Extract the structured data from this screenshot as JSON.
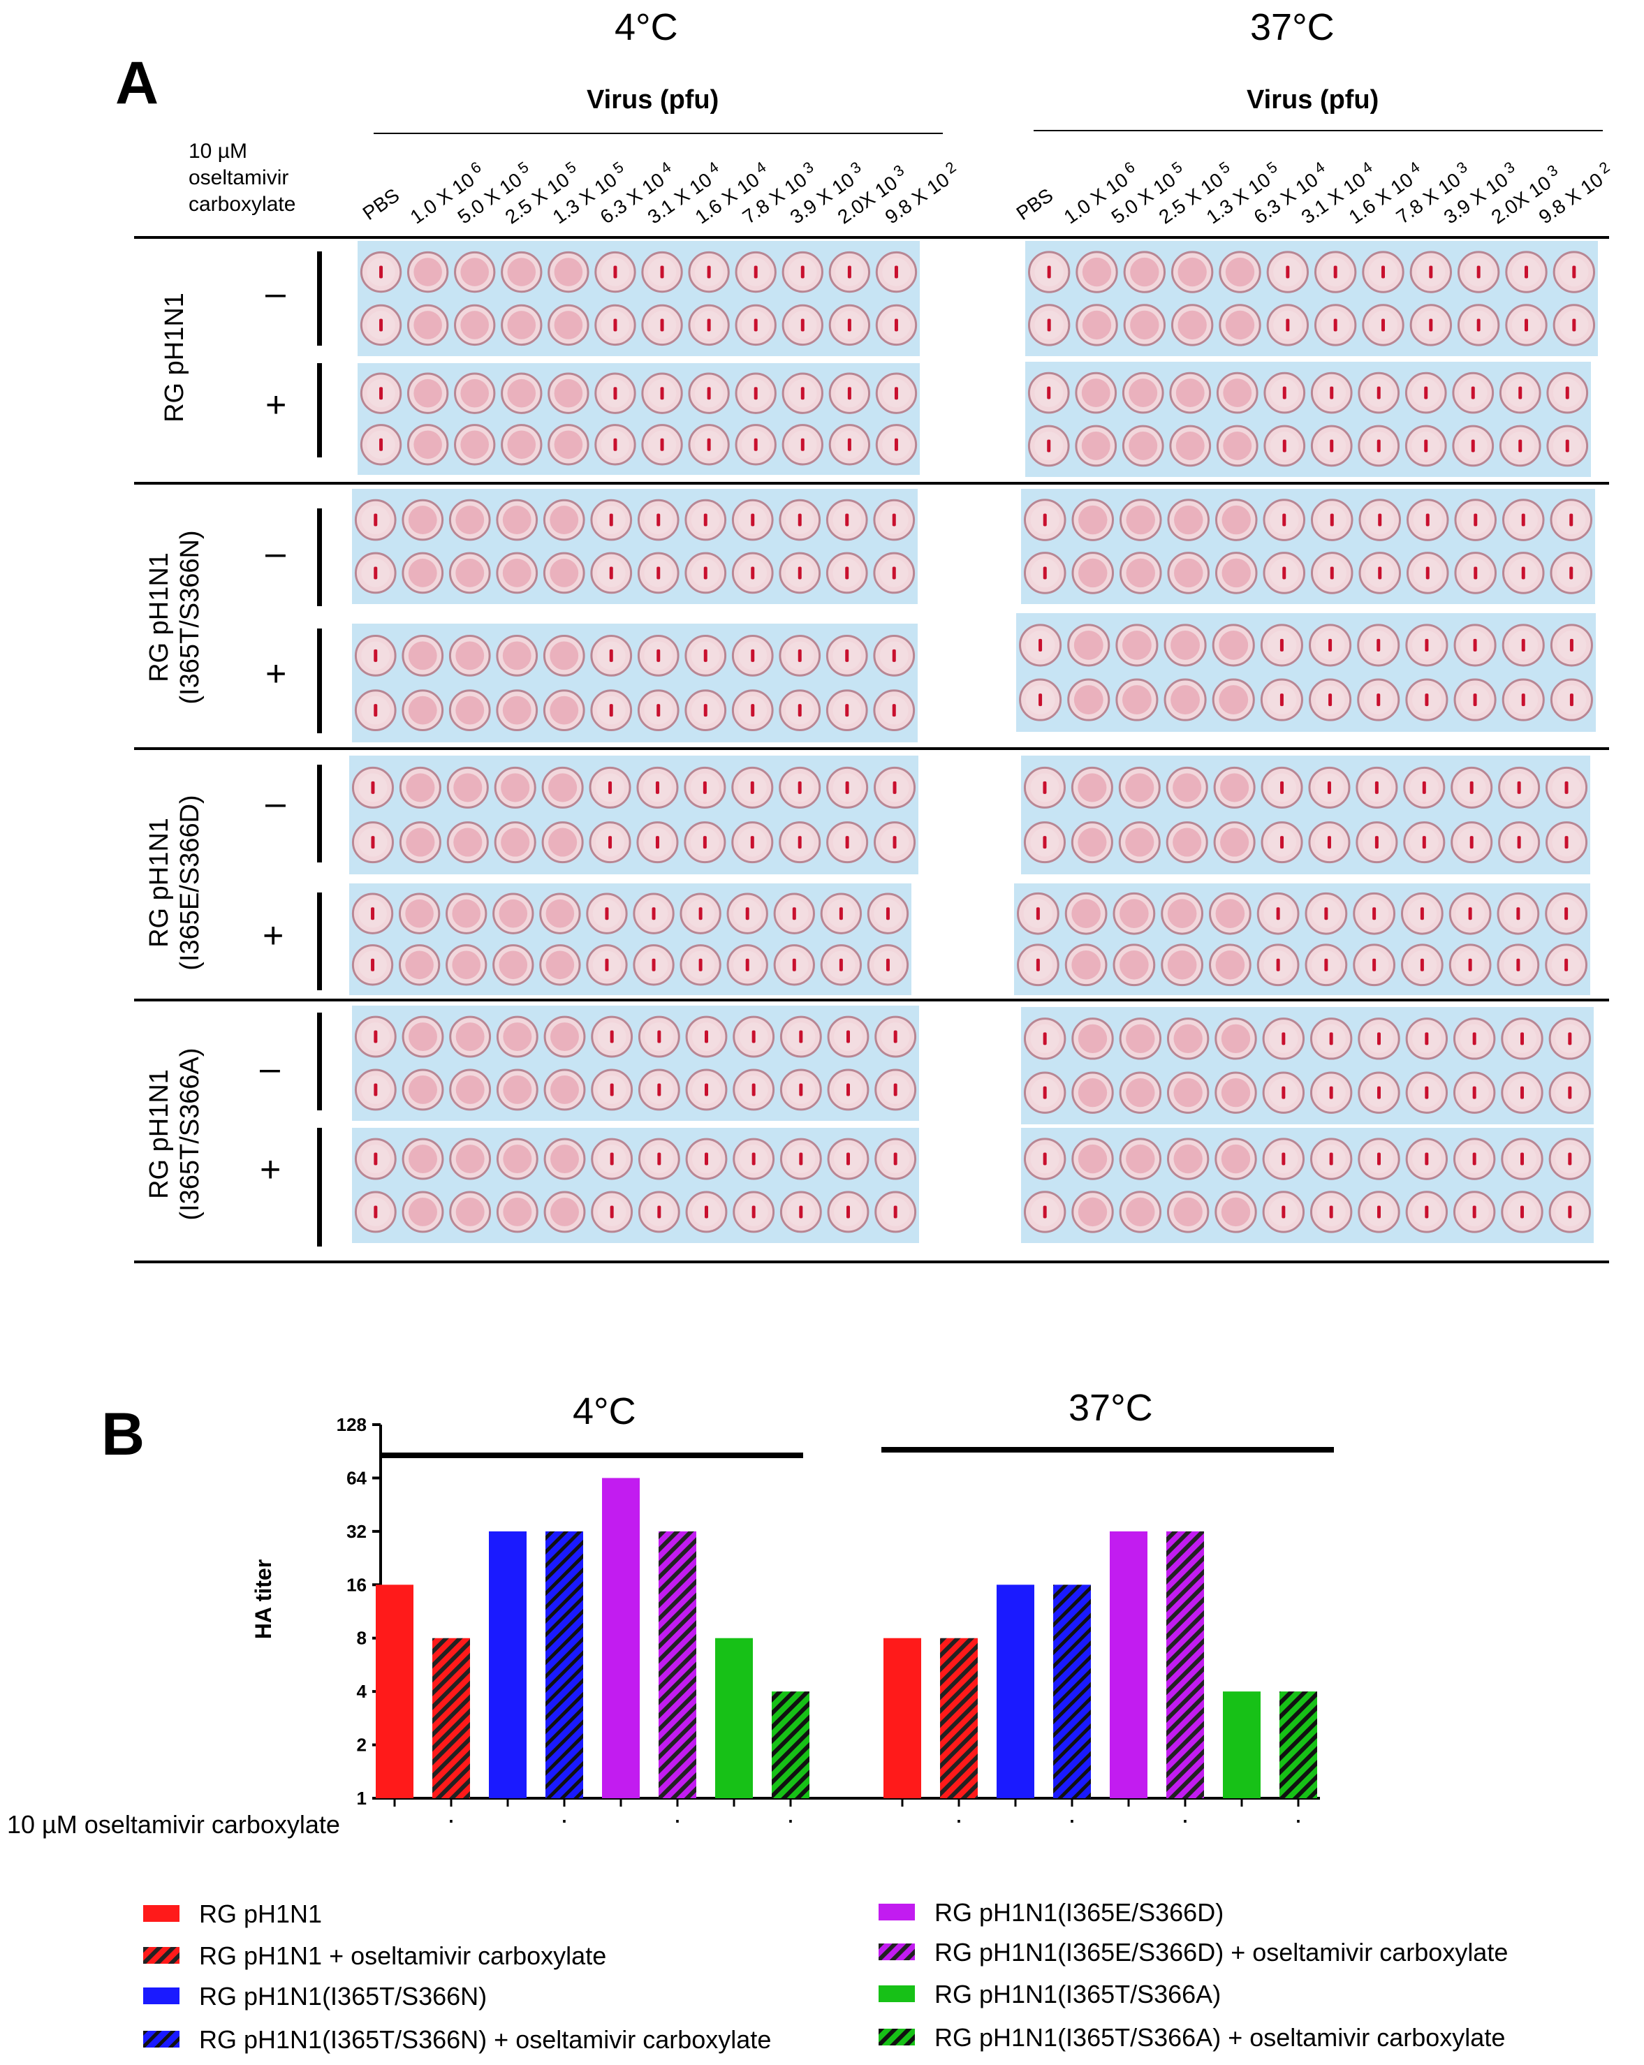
{
  "panelA": {
    "letter": "A",
    "temps": [
      "4°C",
      "37°C"
    ],
    "virus_label": "Virus (pfu)",
    "drug_label_lines": [
      "10 µM",
      "oseltamivir",
      "carboxylate"
    ],
    "columns": [
      "PBS",
      "1.0 X 10^6",
      "5.0 X 10^5",
      "2.5 X 10^5",
      "1.3 X 10^5",
      "6.3 X 10^4",
      "3.1 X 10^4",
      "1.6 X 10^4",
      "7.8 X 10^3",
      "3.9 X 10^3",
      "2.0X 10^3",
      "9.8 X 10^2"
    ],
    "columns_display": [
      "PBS",
      "1.0 X 10",
      "5.0 X 10",
      "2.5 X 10",
      "1.3 X 10",
      "6.3 X 10",
      "3.1 X 10",
      "1.6 X 10",
      "7.8 X 10",
      "3.9 X 10",
      "2.0X 10",
      "9.8 X 10"
    ],
    "column_exponents": [
      "",
      "6",
      "5",
      "5",
      "5",
      "4",
      "4",
      "4",
      "3",
      "3",
      "3",
      "2"
    ],
    "groups": [
      {
        "name": "RG pH1N1",
        "sub": ""
      },
      {
        "name": "RG pH1N1",
        "sub": "(I365T/S366N)"
      },
      {
        "name": "RG pH1N1",
        "sub": "(I365E/S366D)"
      },
      {
        "name": "RG pH1N1",
        "sub": "(I365T/S366A)"
      }
    ],
    "signs": [
      "–",
      "+"
    ]
  },
  "panelB": {
    "letter": "B",
    "temps": [
      "4°C",
      "37°C"
    ],
    "drug_axis_label": "10 µM oseltamivir carboxylate",
    "chart_data": {
      "type": "bar",
      "ylabel": "HA titer",
      "yscale": "log2",
      "ylim": [
        1,
        128
      ],
      "yticks": [
        "1",
        "2",
        "4",
        "8",
        "16",
        "32",
        "64",
        "128"
      ],
      "groups": [
        "4°C",
        "37°C"
      ],
      "x_labels": [
        "–",
        "+",
        "–",
        "+",
        "–",
        "+",
        "–",
        "+"
      ],
      "series": [
        {
          "name": "RG pH1N1",
          "color": "#ff1a1a",
          "hatched": false,
          "values": [
            16,
            8
          ]
        },
        {
          "name": "RG pH1N1 + oseltamivir carboxylate",
          "color": "#ff1a1a",
          "hatched": true,
          "values": [
            8,
            8
          ]
        },
        {
          "name": "RG pH1N1(I365T/S366N)",
          "color": "#1a1aff",
          "hatched": false,
          "values": [
            32,
            16
          ]
        },
        {
          "name": "RG pH1N1(I365T/S366N) + oseltamivir carboxylate",
          "color": "#1a1aff",
          "hatched": true,
          "values": [
            32,
            16
          ]
        },
        {
          "name": "RG pH1N1(I365E/S366D)",
          "color": "#c21cf0",
          "hatched": false,
          "values": [
            64,
            32
          ]
        },
        {
          "name": "RG pH1N1(I365E/S366D) + oseltamivir carboxylate",
          "color": "#c21cf0",
          "hatched": true,
          "values": [
            32,
            32
          ]
        },
        {
          "name": "RG pH1N1(I365T/S366A)",
          "color": "#17c117",
          "hatched": false,
          "values": [
            8,
            4
          ]
        },
        {
          "name": "RG pH1N1(I365T/S366A) + oseltamivir carboxylate",
          "color": "#17c117",
          "hatched": true,
          "values": [
            4,
            4
          ]
        }
      ],
      "legend": "bottom"
    }
  }
}
